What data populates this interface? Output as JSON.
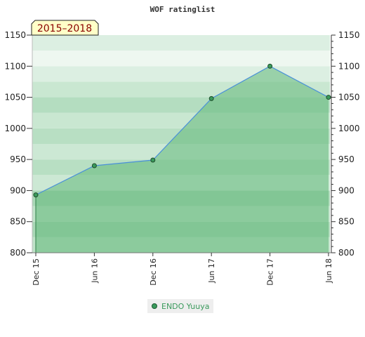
{
  "chart_data": {
    "type": "area",
    "title": "WOF ratinglist",
    "badge": "2015–2018",
    "x": [
      "Dec 15",
      "Jun 16",
      "Dec 16",
      "Jun 17",
      "Dec 17",
      "Jun 18"
    ],
    "series": [
      {
        "name": "ENDO Yuuya",
        "values": [
          893,
          940,
          949,
          1048,
          1100,
          1050
        ]
      }
    ],
    "ylim": [
      800,
      1150
    ],
    "yticks": [
      800,
      850,
      900,
      950,
      1000,
      1050,
      1100,
      1150
    ],
    "xlabel": "",
    "ylabel": "",
    "grid": true,
    "legend_position": "bottom"
  },
  "colors": {
    "line": "#4a90d9",
    "fill": "#62b87a",
    "marker": "#3a9a5c",
    "badge_bg": "#ffffc8",
    "badge_text": "#8b0000"
  }
}
